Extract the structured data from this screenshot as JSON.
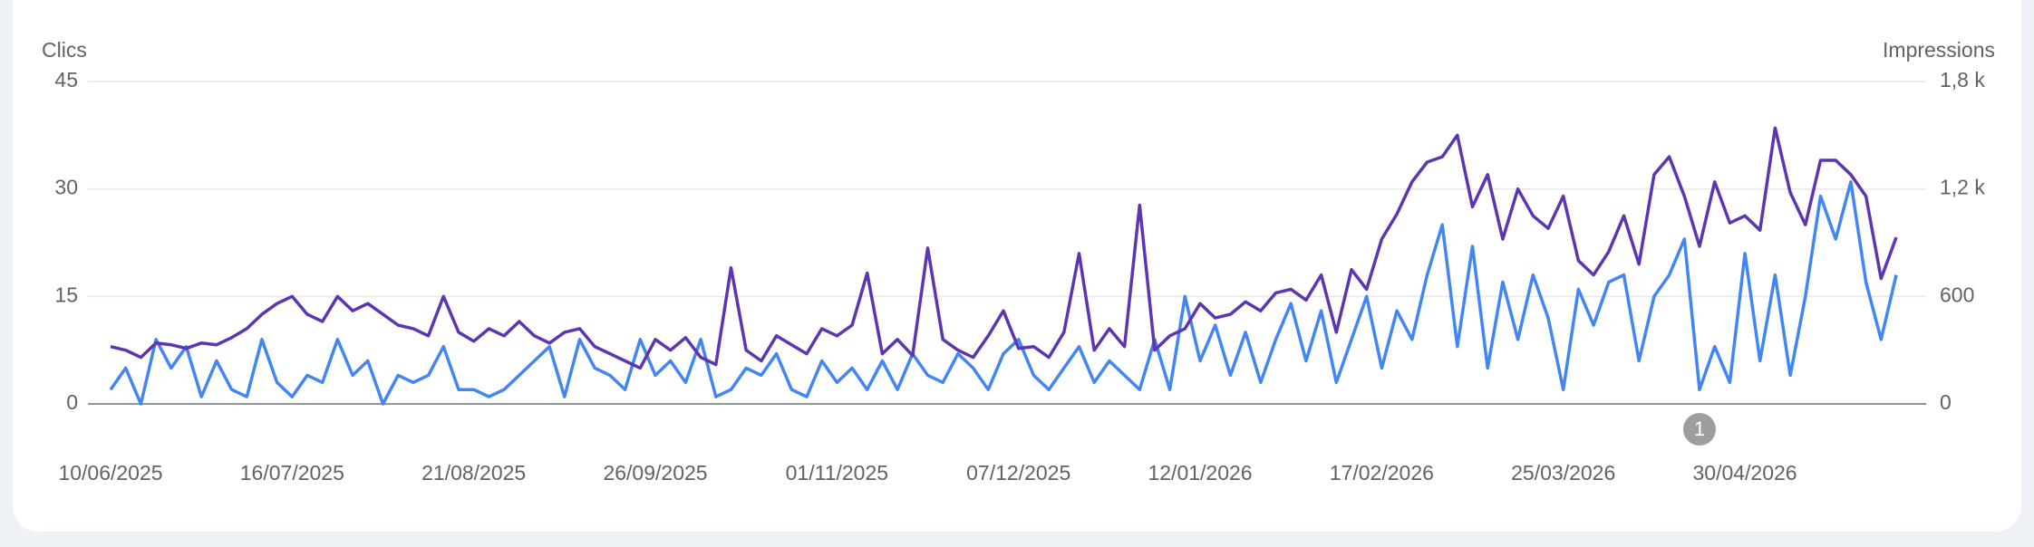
{
  "chart_data": {
    "type": "line",
    "y_label": "Clics",
    "y2_label": "Impressions",
    "x": [
      "10/06/2025",
      "13/06/2025",
      "16/06/2025",
      "19/06/2025",
      "22/06/2025",
      "25/06/2025",
      "28/06/2025",
      "01/07/2025",
      "04/07/2025",
      "07/07/2025",
      "10/07/2025",
      "13/07/2025",
      "16/07/2025",
      "19/07/2025",
      "22/07/2025",
      "25/07/2025",
      "28/07/2025",
      "31/07/2025",
      "03/08/2025",
      "06/08/2025",
      "09/08/2025",
      "12/08/2025",
      "15/08/2025",
      "18/08/2025",
      "21/08/2025",
      "24/08/2025",
      "27/08/2025",
      "30/08/2025",
      "02/09/2025",
      "05/09/2025",
      "08/09/2025",
      "11/09/2025",
      "14/09/2025",
      "17/09/2025",
      "20/09/2025",
      "23/09/2025",
      "26/09/2025",
      "29/09/2025",
      "02/10/2025",
      "05/10/2025",
      "08/10/2025",
      "11/10/2025",
      "14/10/2025",
      "17/10/2025",
      "20/10/2025",
      "23/10/2025",
      "26/10/2025",
      "29/10/2025",
      "01/11/2025",
      "04/11/2025",
      "07/11/2025",
      "10/11/2025",
      "13/11/2025",
      "16/11/2025",
      "19/11/2025",
      "22/11/2025",
      "25/11/2025",
      "28/11/2025",
      "01/12/2025",
      "04/12/2025",
      "07/12/2025",
      "10/12/2025",
      "13/12/2025",
      "16/12/2025",
      "19/12/2025",
      "22/12/2025",
      "25/12/2025",
      "28/12/2025",
      "31/12/2025",
      "03/01/2026",
      "06/01/2026",
      "09/01/2026",
      "12/01/2026",
      "15/01/2026",
      "18/01/2026",
      "21/01/2026",
      "24/01/2026",
      "27/01/2026",
      "30/01/2026",
      "02/02/2026",
      "05/02/2026",
      "08/02/2026",
      "11/02/2026",
      "14/02/2026",
      "17/02/2026",
      "20/02/2026",
      "23/02/2026",
      "26/02/2026",
      "01/03/2026",
      "04/03/2026",
      "07/03/2026",
      "10/03/2026",
      "13/03/2026",
      "16/03/2026",
      "19/03/2026",
      "22/03/2026",
      "25/03/2026",
      "28/03/2026",
      "31/03/2026",
      "03/04/2026",
      "06/04/2026",
      "09/04/2026",
      "12/04/2026",
      "15/04/2026",
      "18/04/2026",
      "21/04/2026",
      "24/04/2026",
      "27/04/2026",
      "30/04/2026",
      "03/05/2026",
      "06/05/2026",
      "09/05/2026",
      "12/05/2026",
      "15/05/2026",
      "18/05/2026",
      "21/05/2026",
      "24/05/2026",
      "27/05/2026",
      "30/05/2026"
    ],
    "series": [
      {
        "name": "Clics",
        "color": "#4285f4",
        "values": [
          2,
          5,
          0,
          9,
          5,
          8,
          1,
          6,
          2,
          1,
          9,
          3,
          1,
          4,
          3,
          9,
          4,
          6,
          0,
          4,
          3,
          4,
          8,
          2,
          2,
          1,
          2,
          4,
          6,
          8,
          1,
          9,
          5,
          4,
          2,
          9,
          4,
          6,
          3,
          9,
          1,
          2,
          5,
          4,
          7,
          2,
          1,
          6,
          3,
          5,
          2,
          6,
          2,
          7,
          4,
          3,
          7,
          5,
          2,
          7,
          9,
          4,
          2,
          5,
          8,
          3,
          6,
          4,
          2,
          9,
          2,
          15,
          6,
          11,
          4,
          10,
          3,
          9,
          14,
          6,
          13,
          3,
          9,
          15,
          5,
          13,
          9,
          18,
          25,
          8,
          22,
          5,
          17,
          9,
          18,
          12,
          2,
          16,
          11,
          17,
          18,
          6,
          15,
          18,
          23,
          2,
          8,
          3,
          21,
          6,
          18,
          4,
          15,
          29,
          23,
          31,
          17,
          9,
          18
        ]
      },
      {
        "name": "Impressions",
        "color": "#5e35b1",
        "axis": "y2",
        "values": [
          320,
          300,
          260,
          340,
          330,
          310,
          340,
          330,
          370,
          420,
          500,
          560,
          600,
          500,
          460,
          600,
          520,
          560,
          500,
          440,
          420,
          380,
          600,
          400,
          350,
          420,
          380,
          460,
          380,
          340,
          400,
          420,
          320,
          280,
          240,
          200,
          360,
          300,
          370,
          260,
          220,
          760,
          300,
          240,
          380,
          330,
          280,
          420,
          380,
          440,
          730,
          280,
          360,
          270,
          870,
          360,
          300,
          260,
          380,
          520,
          310,
          320,
          260,
          400,
          840,
          300,
          420,
          320,
          1110,
          300,
          380,
          420,
          560,
          480,
          500,
          570,
          520,
          620,
          640,
          580,
          720,
          400,
          750,
          640,
          920,
          1060,
          1240,
          1350,
          1380,
          1500,
          1100,
          1280,
          920,
          1200,
          1050,
          980,
          1160,
          800,
          720,
          850,
          1050,
          780,
          1280,
          1380,
          1160,
          880,
          1240,
          1010,
          1050,
          970,
          1540,
          1180,
          1000,
          1360,
          1360,
          1280,
          1160,
          700,
          930
        ]
      }
    ],
    "xticks": [
      "10/06/2025",
      "16/07/2025",
      "21/08/2025",
      "26/09/2025",
      "01/11/2025",
      "07/12/2025",
      "12/01/2026",
      "17/02/2026",
      "25/03/2026",
      "30/04/2026"
    ],
    "ylim": [
      0,
      45
    ],
    "yticks": [
      0,
      15,
      30,
      45
    ],
    "y2lim": [
      0,
      1800
    ],
    "y2ticks": [
      0,
      600,
      {
        "value": 1200,
        "label": "1,2 k"
      },
      {
        "value": 1800,
        "label": "1,8 k"
      }
    ],
    "grid": true,
    "annotations": [
      {
        "x": "21/04/2026",
        "label": "1"
      }
    ]
  }
}
